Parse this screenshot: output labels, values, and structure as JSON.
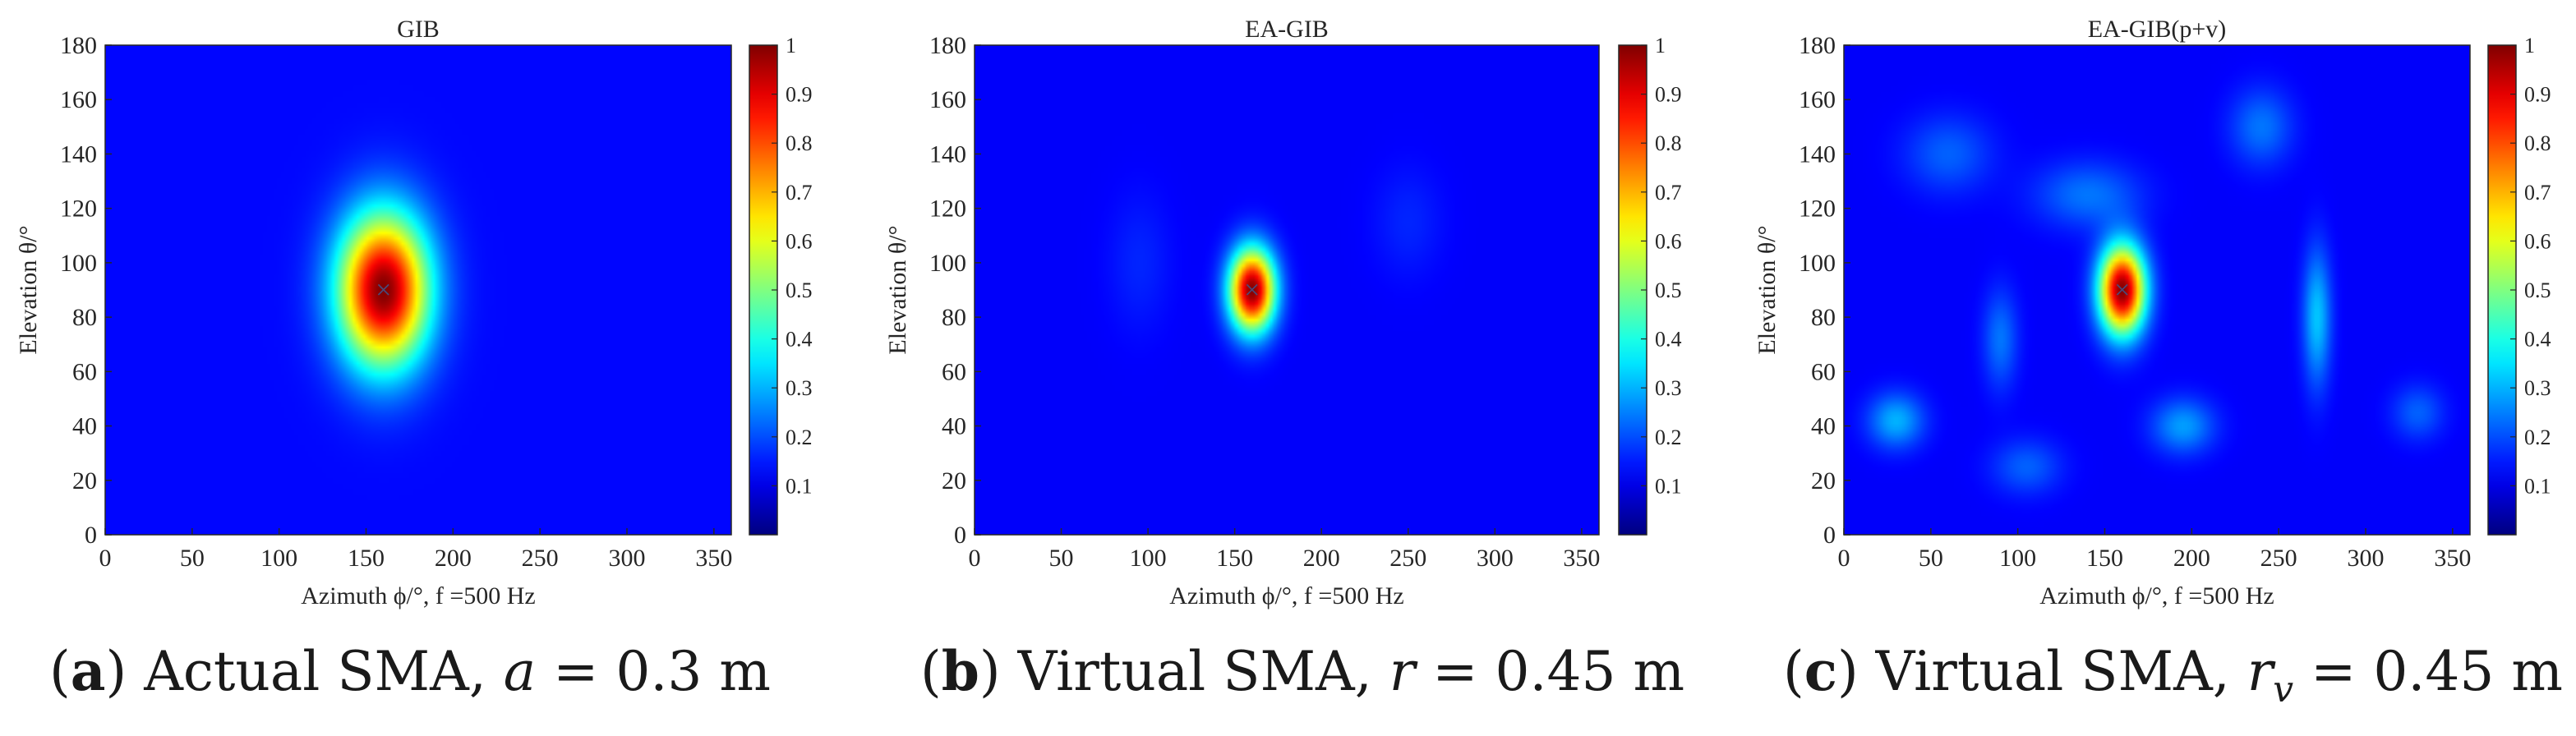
{
  "figure": {
    "panels": [
      {
        "letter": "a",
        "caption_name": "Actual SMA",
        "caption_var": "a",
        "caption_sub": "",
        "caption_eq": "= 0.3 m"
      },
      {
        "letter": "b",
        "caption_name": "Virtual SMA",
        "caption_var": "r",
        "caption_sub": "",
        "caption_eq": "= 0.45 m"
      },
      {
        "letter": "c",
        "caption_name": "Virtual SMA",
        "caption_var": "r",
        "caption_sub": "v",
        "caption_eq": "= 0.45 m"
      }
    ],
    "colormap": "jet",
    "colors": {
      "background": "#ffffff",
      "axis": "#262626",
      "marker": "#4a4a7a"
    }
  },
  "chart_data": [
    {
      "type": "heatmap",
      "title": "GIB",
      "xlabel": "Azimuth ϕ/°, f =500 Hz",
      "ylabel": "Elevation θ/°",
      "xlim": [
        0,
        360
      ],
      "ylim": [
        0,
        180
      ],
      "xticks": [
        0,
        50,
        100,
        150,
        200,
        250,
        300,
        350
      ],
      "yticks": [
        0,
        20,
        40,
        60,
        80,
        100,
        120,
        140,
        160,
        180
      ],
      "colorbar": {
        "range": [
          0,
          1
        ],
        "ticks": [
          0.1,
          0.2,
          0.3,
          0.4,
          0.5,
          0.6,
          0.7,
          0.8,
          0.9,
          1
        ],
        "tick_labels": [
          "0.1",
          "0.2",
          "0.3",
          "0.4",
          "0.5",
          "0.6",
          "0.7",
          "0.8",
          "0.9",
          "1"
        ]
      },
      "peak": {
        "azimuth": 160,
        "elevation": 90,
        "value": 1.0,
        "width_az": 26,
        "width_el": 28
      },
      "floor": 0.13,
      "side_lobes": [],
      "source_marker": {
        "azimuth": 160,
        "elevation": 90,
        "symbol": "×"
      }
    },
    {
      "type": "heatmap",
      "title": "EA-GIB",
      "xlabel": "Azimuth ϕ/°, f =500 Hz",
      "ylabel": "Elevation θ/°",
      "xlim": [
        0,
        360
      ],
      "ylim": [
        0,
        180
      ],
      "xticks": [
        0,
        50,
        100,
        150,
        200,
        250,
        300,
        350
      ],
      "yticks": [
        0,
        20,
        40,
        60,
        80,
        100,
        120,
        140,
        160,
        180
      ],
      "colorbar": {
        "range": [
          0,
          1
        ],
        "ticks": [
          0.1,
          0.2,
          0.3,
          0.4,
          0.5,
          0.6,
          0.7,
          0.8,
          0.9,
          1
        ],
        "tick_labels": [
          "0.1",
          "0.2",
          "0.3",
          "0.4",
          "0.5",
          "0.6",
          "0.7",
          "0.8",
          "0.9",
          "1"
        ]
      },
      "peak": {
        "azimuth": 160,
        "elevation": 90,
        "value": 1.0,
        "width_az": 13,
        "width_el": 15
      },
      "floor": 0.12,
      "side_lobes": [
        {
          "azimuth": 95,
          "elevation": 100,
          "value": 0.04,
          "width_az": 18,
          "width_el": 25
        },
        {
          "azimuth": 250,
          "elevation": 115,
          "value": 0.04,
          "width_az": 20,
          "width_el": 20
        }
      ],
      "source_marker": {
        "azimuth": 160,
        "elevation": 90,
        "symbol": "×"
      }
    },
    {
      "type": "heatmap",
      "title": "EA-GIB(p+v)",
      "xlabel": "Azimuth ϕ/°, f =500 Hz",
      "ylabel": "Elevation θ/°",
      "xlim": [
        0,
        360
      ],
      "ylim": [
        0,
        180
      ],
      "xticks": [
        0,
        50,
        100,
        150,
        200,
        250,
        300,
        350
      ],
      "yticks": [
        0,
        20,
        40,
        60,
        80,
        100,
        120,
        140,
        160,
        180
      ],
      "colorbar": {
        "range": [
          0,
          1
        ],
        "ticks": [
          0.1,
          0.2,
          0.3,
          0.4,
          0.5,
          0.6,
          0.7,
          0.8,
          0.9,
          1
        ],
        "tick_labels": [
          "0.1",
          "0.2",
          "0.3",
          "0.4",
          "0.5",
          "0.6",
          "0.7",
          "0.8",
          "0.9",
          "1"
        ]
      },
      "peak": {
        "azimuth": 160,
        "elevation": 90,
        "value": 1.0,
        "width_az": 13,
        "width_el": 16
      },
      "floor": 0.12,
      "side_lobes": [
        {
          "azimuth": 30,
          "elevation": 42,
          "value": 0.18,
          "width_az": 16,
          "width_el": 10
        },
        {
          "azimuth": 90,
          "elevation": 72,
          "value": 0.12,
          "width_az": 10,
          "width_el": 18
        },
        {
          "azimuth": 195,
          "elevation": 40,
          "value": 0.16,
          "width_az": 18,
          "width_el": 10
        },
        {
          "azimuth": 272,
          "elevation": 80,
          "value": 0.2,
          "width_az": 8,
          "width_el": 25
        },
        {
          "azimuth": 140,
          "elevation": 125,
          "value": 0.12,
          "width_az": 30,
          "width_el": 12
        },
        {
          "azimuth": 240,
          "elevation": 150,
          "value": 0.12,
          "width_az": 18,
          "width_el": 14
        },
        {
          "azimuth": 60,
          "elevation": 140,
          "value": 0.1,
          "width_az": 25,
          "width_el": 14
        },
        {
          "azimuth": 330,
          "elevation": 45,
          "value": 0.1,
          "width_az": 15,
          "width_el": 10
        },
        {
          "azimuth": 105,
          "elevation": 25,
          "value": 0.1,
          "width_az": 20,
          "width_el": 10
        }
      ],
      "source_marker": {
        "azimuth": 160,
        "elevation": 90,
        "symbol": "×"
      }
    }
  ]
}
